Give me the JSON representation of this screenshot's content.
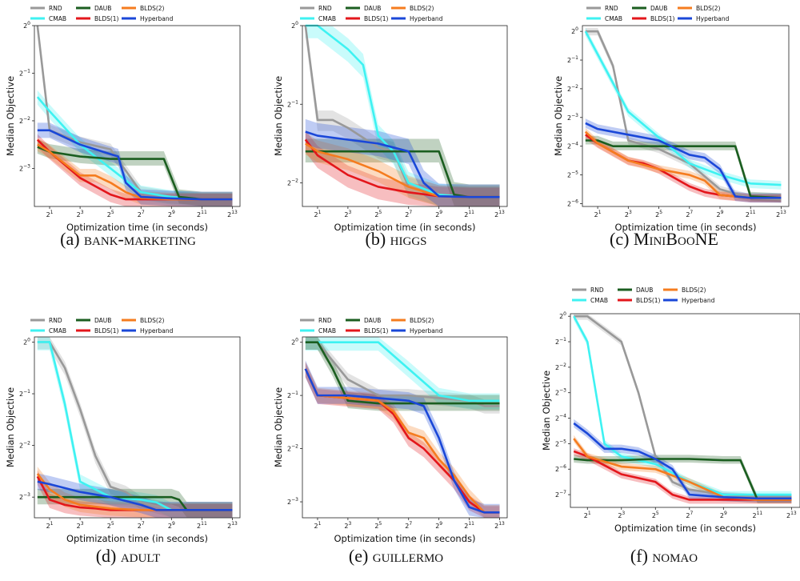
{
  "legend_names": [
    "RND",
    "CMAB",
    "DAUB",
    "BLDS(1)",
    "BLDS(2)",
    "Hyperband"
  ],
  "colors": {
    "RND": "#999999",
    "CMAB": "#3ef2f2",
    "DAUB": "#1b5e20",
    "BLDS(1)": "#e3161b",
    "BLDS(2)": "#f57c1f",
    "Hyperband": "#1a47d8"
  },
  "captions": [
    {
      "prefix": "(a)",
      "label": "bank-marketing"
    },
    {
      "prefix": "(b)",
      "label": "higgs"
    },
    {
      "prefix": "(c)",
      "label": "MiniBooNE"
    },
    {
      "prefix": "(d)",
      "label": "adult"
    },
    {
      "prefix": "(e)",
      "label": "guillermo"
    },
    {
      "prefix": "(f)",
      "label": "nomao"
    }
  ],
  "chart_data": [
    {
      "type": "line",
      "panel": "a",
      "xlabel": "Optimization time (in seconds)",
      "ylabel": "Median Objective",
      "x_scale": "log2",
      "y_scale": "log2",
      "xlim": [
        0,
        13.5
      ],
      "ylim": [
        -3.8,
        0
      ],
      "xticks": [
        1,
        3,
        5,
        7,
        9,
        11,
        13
      ],
      "yticks": [
        0,
        -1,
        -2,
        -3
      ],
      "series": [
        {
          "name": "RND",
          "x": [
            0.2,
            1,
            3,
            5,
            7,
            9,
            11,
            13
          ],
          "y": [
            0,
            -2.2,
            -2.45,
            -2.6,
            -3.5,
            -3.6,
            -3.65,
            -3.65
          ]
        },
        {
          "name": "CMAB",
          "x": [
            0.2,
            1,
            3,
            5,
            7,
            9,
            11,
            13
          ],
          "y": [
            -1.5,
            -1.8,
            -2.5,
            -3.0,
            -3.5,
            -3.6,
            -3.65,
            -3.65
          ]
        },
        {
          "name": "DAUB",
          "x": [
            0.2,
            1,
            3,
            5,
            7,
            8.5,
            9.5,
            11,
            13
          ],
          "y": [
            -2.55,
            -2.65,
            -2.75,
            -2.8,
            -2.8,
            -2.8,
            -3.6,
            -3.65,
            -3.65
          ]
        },
        {
          "name": "BLDS(1)",
          "x": [
            0.2,
            1,
            3,
            5,
            6,
            7,
            9,
            11,
            13
          ],
          "y": [
            -2.4,
            -2.65,
            -3.2,
            -3.55,
            -3.65,
            -3.65,
            -3.65,
            -3.65,
            -3.65
          ]
        },
        {
          "name": "BLDS(2)",
          "x": [
            0.2,
            1,
            2,
            3,
            4,
            5,
            6,
            7,
            9,
            11,
            13
          ],
          "y": [
            -2.5,
            -2.65,
            -2.9,
            -3.15,
            -3.15,
            -3.3,
            -3.5,
            -3.62,
            -3.65,
            -3.65,
            -3.65
          ]
        },
        {
          "name": "Hyperband",
          "x": [
            0.2,
            1,
            3,
            5,
            5.5,
            6,
            7,
            9,
            11,
            13
          ],
          "y": [
            -2.2,
            -2.2,
            -2.5,
            -2.7,
            -2.75,
            -3.3,
            -3.6,
            -3.63,
            -3.65,
            -3.65
          ]
        }
      ]
    },
    {
      "type": "line",
      "panel": "b",
      "xlabel": "Optimization time (in seconds)",
      "ylabel": "Median Objective",
      "x_scale": "log2",
      "y_scale": "log2",
      "xlim": [
        0,
        13.5
      ],
      "ylim": [
        -2.3,
        0
      ],
      "xticks": [
        1,
        3,
        5,
        7,
        9,
        11,
        13
      ],
      "yticks": [
        0,
        -1,
        -2
      ],
      "series": [
        {
          "name": "RND",
          "x": [
            0.2,
            1,
            2,
            3,
            5,
            6,
            7,
            9,
            11,
            13
          ],
          "y": [
            0,
            -1.2,
            -1.2,
            -1.3,
            -1.55,
            -1.6,
            -2.05,
            -2.15,
            -2.18,
            -2.18
          ]
        },
        {
          "name": "CMAB",
          "x": [
            0.2,
            1,
            2,
            3,
            4,
            5,
            6,
            7,
            9,
            11,
            13
          ],
          "y": [
            0,
            0,
            -0.15,
            -0.3,
            -0.5,
            -1.4,
            -1.6,
            -2.0,
            -2.15,
            -2.18,
            -2.18
          ]
        },
        {
          "name": "DAUB",
          "x": [
            0.2,
            1,
            3,
            5,
            7,
            8,
            9,
            10,
            11,
            13
          ],
          "y": [
            -1.6,
            -1.6,
            -1.6,
            -1.6,
            -1.6,
            -1.6,
            -1.6,
            -2.15,
            -2.18,
            -2.18
          ]
        },
        {
          "name": "BLDS(1)",
          "x": [
            0.2,
            1,
            3,
            5,
            7,
            9,
            11,
            13
          ],
          "y": [
            -1.45,
            -1.65,
            -1.9,
            -2.05,
            -2.12,
            -2.17,
            -2.18,
            -2.18
          ]
        },
        {
          "name": "BLDS(2)",
          "x": [
            0.2,
            1,
            3,
            5,
            7,
            9,
            11,
            13
          ],
          "y": [
            -1.5,
            -1.6,
            -1.7,
            -1.85,
            -2.05,
            -2.17,
            -2.18,
            -2.18
          ]
        },
        {
          "name": "Hyperband",
          "x": [
            0.2,
            1,
            3,
            5,
            6,
            7,
            8,
            9,
            11,
            13
          ],
          "y": [
            -1.35,
            -1.4,
            -1.45,
            -1.5,
            -1.55,
            -1.6,
            -2.0,
            -2.17,
            -2.18,
            -2.18
          ]
        }
      ]
    },
    {
      "type": "line",
      "panel": "c",
      "xlabel": "Optimization time (in seconds)",
      "ylabel": "Median Objective",
      "x_scale": "log2",
      "y_scale": "log2",
      "xlim": [
        0,
        13.5
      ],
      "ylim": [
        -6.1,
        0.2
      ],
      "xticks": [
        1,
        3,
        5,
        7,
        9,
        11,
        13
      ],
      "yticks": [
        0,
        -1,
        -2,
        -3,
        -4,
        -5,
        -6
      ],
      "series": [
        {
          "name": "RND",
          "x": [
            0.2,
            1,
            2,
            3,
            5,
            7,
            9,
            11,
            13
          ],
          "y": [
            0,
            0,
            -1.2,
            -3.8,
            -4.1,
            -4.6,
            -5.5,
            -5.8,
            -5.85
          ]
        },
        {
          "name": "CMAB",
          "x": [
            0.2,
            1,
            2,
            3,
            5,
            7,
            9,
            11,
            13
          ],
          "y": [
            0,
            -0.8,
            -1.8,
            -2.8,
            -3.7,
            -4.6,
            -5.0,
            -5.3,
            -5.35
          ]
        },
        {
          "name": "DAUB",
          "x": [
            0.2,
            1,
            2,
            3,
            5,
            7,
            9,
            10,
            11,
            13
          ],
          "y": [
            -3.8,
            -3.8,
            -4.0,
            -4.0,
            -4.0,
            -4.0,
            -4.0,
            -4.0,
            -5.75,
            -5.8
          ]
        },
        {
          "name": "BLDS(1)",
          "x": [
            0.2,
            1,
            2,
            3,
            4,
            5,
            6,
            7,
            8,
            9,
            10,
            11,
            13
          ],
          "y": [
            -3.6,
            -3.9,
            -4.2,
            -4.5,
            -4.6,
            -4.8,
            -5.1,
            -5.4,
            -5.6,
            -5.7,
            -5.75,
            -5.8,
            -5.8
          ]
        },
        {
          "name": "BLDS(2)",
          "x": [
            0.2,
            1,
            2,
            3,
            5,
            7,
            8,
            9,
            10,
            11,
            13
          ],
          "y": [
            -3.5,
            -3.9,
            -4.2,
            -4.5,
            -4.8,
            -5.0,
            -5.2,
            -5.7,
            -5.75,
            -5.8,
            -5.8
          ]
        },
        {
          "name": "Hyperband",
          "x": [
            0.2,
            1,
            3,
            5,
            7,
            8,
            9,
            10,
            11,
            13
          ],
          "y": [
            -3.2,
            -3.4,
            -3.6,
            -3.8,
            -4.3,
            -4.4,
            -4.8,
            -5.75,
            -5.8,
            -5.8
          ]
        }
      ]
    },
    {
      "type": "line",
      "panel": "d",
      "xlabel": "Optimization time (in seconds)",
      "ylabel": "Median Objective",
      "x_scale": "log2",
      "y_scale": "log2",
      "xlim": [
        0,
        13.5
      ],
      "ylim": [
        -3.4,
        0.1
      ],
      "xticks": [
        1,
        3,
        5,
        7,
        9,
        11,
        13
      ],
      "yticks": [
        0,
        -1,
        -2,
        -3
      ],
      "series": [
        {
          "name": "RND",
          "x": [
            0.2,
            1,
            2,
            3,
            4,
            5,
            6,
            7,
            9,
            11,
            13
          ],
          "y": [
            0,
            0,
            -0.5,
            -1.3,
            -2.2,
            -2.8,
            -2.9,
            -3.1,
            -3.25,
            -3.25,
            -3.25
          ]
        },
        {
          "name": "CMAB",
          "x": [
            0.2,
            1,
            2,
            3,
            5,
            7,
            8,
            9,
            11,
            13
          ],
          "y": [
            0,
            0,
            -1.2,
            -2.7,
            -3.0,
            -3.05,
            -3.1,
            -3.25,
            -3.25,
            -3.25
          ]
        },
        {
          "name": "DAUB",
          "x": [
            0.2,
            1,
            3,
            5,
            7,
            9,
            9.5,
            10,
            11,
            13
          ],
          "y": [
            -3.0,
            -3.0,
            -3.0,
            -3.0,
            -3.0,
            -3.0,
            -3.05,
            -3.25,
            -3.25,
            -3.25
          ]
        },
        {
          "name": "BLDS(1)",
          "x": [
            0.2,
            1,
            2,
            3,
            4,
            5,
            6,
            7,
            9,
            11,
            13
          ],
          "y": [
            -2.6,
            -3.05,
            -3.15,
            -3.2,
            -3.22,
            -3.25,
            -3.25,
            -3.25,
            -3.25,
            -3.25,
            -3.25
          ]
        },
        {
          "name": "BLDS(2)",
          "x": [
            0.2,
            1,
            2,
            3,
            5,
            7,
            9,
            11,
            13
          ],
          "y": [
            -2.55,
            -2.85,
            -3.05,
            -3.15,
            -3.22,
            -3.25,
            -3.25,
            -3.25,
            -3.25
          ]
        },
        {
          "name": "Hyperband",
          "x": [
            0.2,
            1,
            3,
            5,
            7,
            8,
            9,
            11,
            13
          ],
          "y": [
            -2.7,
            -2.75,
            -2.9,
            -3.0,
            -3.15,
            -3.25,
            -3.25,
            -3.25,
            -3.25
          ]
        }
      ]
    },
    {
      "type": "line",
      "panel": "e",
      "xlabel": "Optimization time (in seconds)",
      "ylabel": "Median Objective",
      "x_scale": "log2",
      "y_scale": "log2",
      "xlim": [
        0,
        13.5
      ],
      "ylim": [
        -3.3,
        0.1
      ],
      "xticks": [
        1,
        3,
        5,
        7,
        9,
        11,
        13
      ],
      "yticks": [
        0,
        -1,
        -2,
        -3
      ],
      "series": [
        {
          "name": "RND",
          "x": [
            0.2,
            1,
            3,
            5,
            7,
            9,
            11,
            12,
            13
          ],
          "y": [
            0,
            0,
            -0.7,
            -1.0,
            -1.0,
            -1.05,
            -1.1,
            -1.2,
            -1.2
          ]
        },
        {
          "name": "CMAB",
          "x": [
            0.2,
            1,
            3,
            5,
            7,
            9,
            11,
            13
          ],
          "y": [
            0,
            0,
            0,
            0,
            -0.5,
            -1.0,
            -1.1,
            -1.1
          ]
        },
        {
          "name": "DAUB",
          "x": [
            0.2,
            1,
            2,
            3,
            5,
            7,
            9,
            11,
            13
          ],
          "y": [
            0,
            0,
            -0.5,
            -1.1,
            -1.15,
            -1.15,
            -1.15,
            -1.15,
            -1.15
          ]
        },
        {
          "name": "BLDS(1)",
          "x": [
            0.2,
            1,
            3,
            5,
            6,
            7,
            8,
            9,
            10,
            11,
            12,
            13
          ],
          "y": [
            -0.5,
            -1.0,
            -1.05,
            -1.1,
            -1.35,
            -1.8,
            -2.0,
            -2.3,
            -2.6,
            -3.0,
            -3.2,
            -3.2
          ]
        },
        {
          "name": "BLDS(2)",
          "x": [
            0.2,
            1,
            3,
            5,
            6,
            7,
            8,
            9,
            10,
            11,
            12,
            13
          ],
          "y": [
            -0.5,
            -1.0,
            -1.05,
            -1.1,
            -1.3,
            -1.7,
            -1.8,
            -2.2,
            -2.5,
            -2.9,
            -3.2,
            -3.2
          ]
        },
        {
          "name": "Hyperband",
          "x": [
            0.2,
            1,
            3,
            5,
            7,
            8,
            9,
            10,
            11,
            12,
            13
          ],
          "y": [
            -0.5,
            -1.0,
            -1.0,
            -1.05,
            -1.1,
            -1.2,
            -1.8,
            -2.6,
            -3.1,
            -3.2,
            -3.2
          ]
        }
      ]
    },
    {
      "type": "line",
      "panel": "f",
      "xlabel": "Optimization time (in seconds)",
      "ylabel": "Median Objective",
      "x_scale": "log2",
      "y_scale": "log2",
      "xlim": [
        0,
        13.5
      ],
      "ylim": [
        -7.5,
        0.1
      ],
      "xticks": [
        1,
        3,
        5,
        7,
        9,
        11,
        13
      ],
      "yticks": [
        0,
        -1,
        -2,
        -3,
        -4,
        -5,
        -6,
        -7
      ],
      "series": [
        {
          "name": "RND",
          "x": [
            0.2,
            1,
            2,
            3,
            4,
            5,
            6,
            7,
            9,
            11,
            13
          ],
          "y": [
            0,
            0,
            -0.5,
            -1.0,
            -3.0,
            -5.5,
            -6.5,
            -6.8,
            -7.0,
            -7.1,
            -7.1
          ]
        },
        {
          "name": "CMAB",
          "x": [
            0.2,
            1,
            2,
            3,
            5,
            7,
            9,
            11,
            13
          ],
          "y": [
            0,
            -1.0,
            -5.0,
            -5.5,
            -5.8,
            -6.5,
            -7.0,
            -7.0,
            -7.0
          ]
        },
        {
          "name": "DAUB",
          "x": [
            0.2,
            1,
            3,
            5,
            7,
            9,
            10,
            11,
            13
          ],
          "y": [
            -5.6,
            -5.65,
            -5.65,
            -5.6,
            -5.6,
            -5.65,
            -5.65,
            -7.2,
            -7.2
          ]
        },
        {
          "name": "BLDS(1)",
          "x": [
            0.2,
            1,
            3,
            5,
            6,
            7,
            9,
            11,
            13
          ],
          "y": [
            -5.3,
            -5.5,
            -6.2,
            -6.5,
            -7.0,
            -7.2,
            -7.2,
            -7.2,
            -7.2
          ]
        },
        {
          "name": "BLDS(2)",
          "x": [
            0.2,
            1,
            3,
            5,
            7,
            9,
            11,
            13
          ],
          "y": [
            -4.8,
            -5.5,
            -5.9,
            -6.0,
            -6.5,
            -7.1,
            -7.2,
            -7.2
          ]
        },
        {
          "name": "Hyperband",
          "x": [
            0.2,
            1,
            2,
            3,
            4,
            5,
            6,
            7,
            9,
            11,
            13
          ],
          "y": [
            -4.2,
            -4.6,
            -5.2,
            -5.2,
            -5.3,
            -5.6,
            -6.0,
            -7.0,
            -7.1,
            -7.15,
            -7.15
          ]
        }
      ]
    }
  ]
}
